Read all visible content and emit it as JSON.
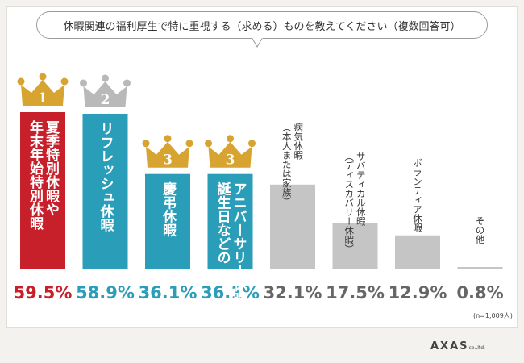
{
  "chart_data": {
    "type": "bar",
    "title": "休暇関連の福利厚生で特に重視する（求める）ものを教えてください（複数回答可）",
    "sample_note": "(n=1,009人)",
    "ylim": [
      0,
      70
    ],
    "categories": [
      {
        "lines": [
          "夏季特別休暇や",
          "年末年始特別休暇"
        ],
        "value": 59.5,
        "display": "59.5%",
        "rank": "1",
        "color": "#c8202b"
      },
      {
        "lines": [
          "リフレッシュ休暇"
        ],
        "value": 58.9,
        "display": "58.9%",
        "rank": "2",
        "color": "#2a9db8"
      },
      {
        "lines": [
          "慶弔休暇"
        ],
        "value": 36.1,
        "display": "36.1%",
        "rank": "3",
        "color": "#2a9db8"
      },
      {
        "lines": [
          "アニバーサリー休暇",
          "誕生日などの"
        ],
        "value": 36.1,
        "display": "36.1%",
        "rank": "3",
        "color": "#2a9db8"
      },
      {
        "lines": [
          "病気休暇",
          "（本人または家族）"
        ],
        "value": 32.1,
        "display": "32.1%",
        "rank": "",
        "color": "#c5c5c5"
      },
      {
        "lines": [
          "サバティカル休暇",
          "（ディスカバリー休暇）"
        ],
        "value": 17.5,
        "display": "17.5%",
        "rank": "",
        "color": "#c5c5c5"
      },
      {
        "lines": [
          "ボランティア休暇"
        ],
        "value": 12.9,
        "display": "12.9%",
        "rank": "",
        "color": "#c5c5c5"
      },
      {
        "lines": [
          "その他"
        ],
        "value": 0.8,
        "display": "0.8%",
        "rank": "",
        "color": "#c5c5c5"
      }
    ]
  },
  "brand": {
    "name": "AXAS",
    "suffix": "co.,ltd."
  },
  "colors": {
    "gold": "#d7a431",
    "silver": "#b9b9b9",
    "red": "#c8202b",
    "teal": "#2a9db8",
    "gray": "#c5c5c5"
  }
}
